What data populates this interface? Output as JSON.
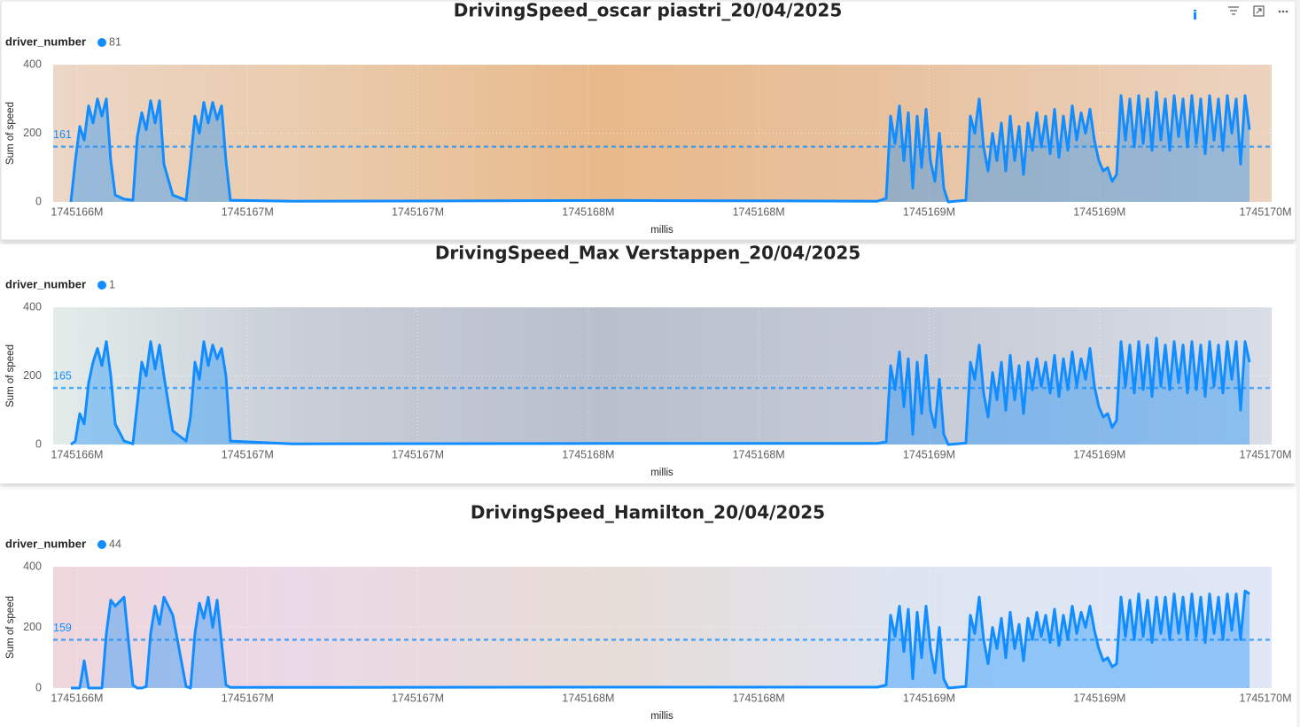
{
  "chart_data": [
    {
      "type": "area",
      "title": "DrivingSpeed_oscar piastri_20/04/2025",
      "legend_title": "driver_number",
      "x_label": "millis",
      "y_label": "Sum of speed",
      "grid": true,
      "average": 161,
      "xlim": [
        1745165930000,
        1745169505000
      ],
      "ylim": [
        0,
        400
      ],
      "yticks": [
        0,
        200,
        400
      ],
      "xticks": [
        {
          "value": 1745166000000,
          "label": "1745166M"
        },
        {
          "value": 1745166500000,
          "label": "1745167M"
        },
        {
          "value": 1745167000000,
          "label": "1745167M"
        },
        {
          "value": 1745167500000,
          "label": "1745168M"
        },
        {
          "value": 1745168000000,
          "label": "1745168M"
        },
        {
          "value": 1745168500000,
          "label": "1745169M"
        },
        {
          "value": 1745169000000,
          "label": "1745169M"
        },
        {
          "value": 1745169500000,
          "label": "1745170M"
        }
      ],
      "x": [
        1745165982000,
        1745165995000,
        1745166008000,
        1745166021000,
        1745166034000,
        1745166047000,
        1745166060000,
        1745166073000,
        1745166086000,
        1745166099000,
        1745166112000,
        1745166138000,
        1745166164000,
        1745166177000,
        1745166190000,
        1745166203000,
        1745166216000,
        1745166229000,
        1745166242000,
        1745166255000,
        1745166281000,
        1745166320000,
        1745166333000,
        1745166346000,
        1745166359000,
        1745166372000,
        1745166385000,
        1745166398000,
        1745166411000,
        1745166424000,
        1745166437000,
        1745166450000,
        1745166632000,
        1745167594000,
        1745168348000,
        1745168374000,
        1745168387000,
        1745168400000,
        1745168413000,
        1745168426000,
        1745168439000,
        1745168452000,
        1745168465000,
        1745168478000,
        1745168491000,
        1745168504000,
        1745168517000,
        1745168530000,
        1745168543000,
        1745168556000,
        1745168608000,
        1745168621000,
        1745168634000,
        1745168647000,
        1745168660000,
        1745168673000,
        1745168686000,
        1745168699000,
        1745168712000,
        1745168725000,
        1745168738000,
        1745168751000,
        1745168764000,
        1745168777000,
        1745168790000,
        1745168803000,
        1745168816000,
        1745168829000,
        1745168842000,
        1745168855000,
        1745168868000,
        1745168881000,
        1745168894000,
        1745168907000,
        1745168920000,
        1745168933000,
        1745168946000,
        1745168959000,
        1745168972000,
        1745168985000,
        1745168998000,
        1745169011000,
        1745169024000,
        1745169037000,
        1745169050000,
        1745169063000,
        1745169076000,
        1745169089000,
        1745169102000,
        1745169115000,
        1745169128000,
        1745169141000,
        1745169154000,
        1745169167000,
        1745169180000,
        1745169193000,
        1745169206000,
        1745169219000,
        1745169232000,
        1745169245000,
        1745169258000,
        1745169271000,
        1745169284000,
        1745169297000,
        1745169310000,
        1745169323000,
        1745169336000,
        1745169349000,
        1745169362000,
        1745169375000,
        1745169388000,
        1745169401000,
        1745169414000,
        1745169427000,
        1745169440000
      ],
      "series": [
        {
          "name": "81",
          "color": "#118dff",
          "values": [
            0,
            120,
            220,
            180,
            280,
            230,
            300,
            250,
            300,
            120,
            20,
            8,
            5,
            190,
            260,
            210,
            295,
            230,
            295,
            110,
            20,
            5,
            120,
            250,
            200,
            290,
            230,
            290,
            240,
            280,
            120,
            5,
            2,
            4,
            2,
            10,
            250,
            170,
            280,
            120,
            260,
            40,
            250,
            100,
            270,
            120,
            60,
            200,
            40,
            0,
            5,
            250,
            200,
            300,
            160,
            90,
            200,
            120,
            230,
            90,
            250,
            120,
            220,
            80,
            230,
            150,
            260,
            160,
            250,
            140,
            270,
            130,
            250,
            150,
            280,
            180,
            260,
            200,
            270,
            180,
            120,
            90,
            100,
            60,
            80,
            310,
            180,
            300,
            160,
            310,
            170,
            300,
            150,
            320,
            180,
            300,
            150,
            310,
            190,
            300,
            160,
            310,
            170,
            300,
            140,
            310,
            180,
            300,
            150,
            310,
            200,
            300,
            110,
            310,
            210
          ]
        }
      ]
    },
    {
      "type": "area",
      "title": "DrivingSpeed_Max Verstappen_20/04/2025",
      "legend_title": "driver_number",
      "x_label": "millis",
      "y_label": "Sum of speed",
      "grid": true,
      "average": 165,
      "xlim": [
        1745165930000,
        1745169505000
      ],
      "ylim": [
        0,
        400
      ],
      "yticks": [
        0,
        200,
        400
      ],
      "xticks": [
        {
          "value": 1745166000000,
          "label": "1745166M"
        },
        {
          "value": 1745166500000,
          "label": "1745167M"
        },
        {
          "value": 1745167000000,
          "label": "1745167M"
        },
        {
          "value": 1745167500000,
          "label": "1745168M"
        },
        {
          "value": 1745168000000,
          "label": "1745168M"
        },
        {
          "value": 1745168500000,
          "label": "1745169M"
        },
        {
          "value": 1745169000000,
          "label": "1745169M"
        },
        {
          "value": 1745169500000,
          "label": "1745170M"
        }
      ],
      "x": [
        1745165982000,
        1745165995000,
        1745166008000,
        1745166021000,
        1745166034000,
        1745166047000,
        1745166060000,
        1745166073000,
        1745166086000,
        1745166099000,
        1745166112000,
        1745166138000,
        1745166164000,
        1745166177000,
        1745166190000,
        1745166203000,
        1745166216000,
        1745166229000,
        1745166242000,
        1745166255000,
        1745166281000,
        1745166320000,
        1745166333000,
        1745166346000,
        1745166359000,
        1745166372000,
        1745166385000,
        1745166398000,
        1745166411000,
        1745166424000,
        1745166437000,
        1745166450000,
        1745166632000,
        1745167594000,
        1745168348000,
        1745168374000,
        1745168387000,
        1745168400000,
        1745168413000,
        1745168426000,
        1745168439000,
        1745168452000,
        1745168465000,
        1745168478000,
        1745168491000,
        1745168504000,
        1745168517000,
        1745168530000,
        1745168543000,
        1745168556000,
        1745168608000,
        1745168621000,
        1745168634000,
        1745168647000,
        1745168660000,
        1745168673000,
        1745168686000,
        1745168699000,
        1745168712000,
        1745168725000,
        1745168738000,
        1745168751000,
        1745168764000,
        1745168777000,
        1745168790000,
        1745168803000,
        1745168816000,
        1745168829000,
        1745168842000,
        1745168855000,
        1745168868000,
        1745168881000,
        1745168894000,
        1745168907000,
        1745168920000,
        1745168933000,
        1745168946000,
        1745168959000,
        1745168972000,
        1745168985000,
        1745168998000,
        1745169011000,
        1745169024000,
        1745169037000,
        1745169050000,
        1745169063000,
        1745169076000,
        1745169089000,
        1745169102000,
        1745169115000,
        1745169128000,
        1745169141000,
        1745169154000,
        1745169167000,
        1745169180000,
        1745169193000,
        1745169206000,
        1745169219000,
        1745169232000,
        1745169245000,
        1745169258000,
        1745169271000,
        1745169284000,
        1745169297000,
        1745169310000,
        1745169323000,
        1745169336000,
        1745169349000,
        1745169362000,
        1745169375000,
        1745169388000,
        1745169401000,
        1745169414000,
        1745169427000,
        1745169440000
      ],
      "series": [
        {
          "name": "1",
          "color": "#118dff",
          "values": [
            0,
            10,
            90,
            60,
            180,
            240,
            280,
            230,
            300,
            200,
            60,
            10,
            2,
            120,
            240,
            200,
            300,
            220,
            290,
            200,
            40,
            10,
            80,
            240,
            190,
            300,
            230,
            290,
            250,
            280,
            200,
            10,
            2,
            3,
            3,
            8,
            230,
            160,
            270,
            110,
            250,
            30,
            240,
            90,
            260,
            100,
            50,
            190,
            30,
            0,
            4,
            240,
            190,
            290,
            150,
            80,
            210,
            130,
            240,
            100,
            260,
            130,
            230,
            90,
            240,
            160,
            250,
            170,
            240,
            150,
            260,
            140,
            250,
            160,
            270,
            170,
            250,
            190,
            280,
            170,
            110,
            80,
            90,
            50,
            70,
            300,
            170,
            290,
            150,
            300,
            160,
            290,
            140,
            310,
            170,
            290,
            160,
            300,
            180,
            290,
            150,
            300,
            160,
            290,
            140,
            300,
            170,
            290,
            150,
            300,
            190,
            300,
            100,
            300,
            240
          ]
        }
      ]
    },
    {
      "type": "area",
      "title": "DrivingSpeed_Hamilton_20/04/2025",
      "legend_title": "driver_number",
      "x_label": "millis",
      "y_label": "Sum of speed",
      "grid": true,
      "average": 159,
      "xlim": [
        1745165930000,
        1745169505000
      ],
      "ylim": [
        0,
        400
      ],
      "yticks": [
        0,
        200,
        400
      ],
      "xticks": [
        {
          "value": 1745166000000,
          "label": "1745166M"
        },
        {
          "value": 1745166500000,
          "label": "1745167M"
        },
        {
          "value": 1745167000000,
          "label": "1745167M"
        },
        {
          "value": 1745167500000,
          "label": "1745168M"
        },
        {
          "value": 1745168000000,
          "label": "1745168M"
        },
        {
          "value": 1745168500000,
          "label": "1745169M"
        },
        {
          "value": 1745169000000,
          "label": "1745169M"
        },
        {
          "value": 1745169500000,
          "label": "1745170M"
        }
      ],
      "x": [
        1745165982000,
        1745165995000,
        1745166008000,
        1745166021000,
        1745166034000,
        1745166047000,
        1745166060000,
        1745166073000,
        1745166086000,
        1745166099000,
        1745166112000,
        1745166138000,
        1745166164000,
        1745166177000,
        1745166190000,
        1745166203000,
        1745166216000,
        1745166229000,
        1745166242000,
        1745166255000,
        1745166281000,
        1745166320000,
        1745166333000,
        1745166346000,
        1745166359000,
        1745166372000,
        1745166385000,
        1745166398000,
        1745166411000,
        1745166424000,
        1745166437000,
        1745166450000,
        1745166632000,
        1745167594000,
        1745168348000,
        1745168374000,
        1745168387000,
        1745168400000,
        1745168413000,
        1745168426000,
        1745168439000,
        1745168452000,
        1745168465000,
        1745168478000,
        1745168491000,
        1745168504000,
        1745168517000,
        1745168530000,
        1745168543000,
        1745168556000,
        1745168608000,
        1745168621000,
        1745168634000,
        1745168647000,
        1745168660000,
        1745168673000,
        1745168686000,
        1745168699000,
        1745168712000,
        1745168725000,
        1745168738000,
        1745168751000,
        1745168764000,
        1745168777000,
        1745168790000,
        1745168803000,
        1745168816000,
        1745168829000,
        1745168842000,
        1745168855000,
        1745168868000,
        1745168881000,
        1745168894000,
        1745168907000,
        1745168920000,
        1745168933000,
        1745168946000,
        1745168959000,
        1745168972000,
        1745168985000,
        1745168998000,
        1745169011000,
        1745169024000,
        1745169037000,
        1745169050000,
        1745169063000,
        1745169076000,
        1745169089000,
        1745169102000,
        1745169115000,
        1745169128000,
        1745169141000,
        1745169154000,
        1745169167000,
        1745169180000,
        1745169193000,
        1745169206000,
        1745169219000,
        1745169232000,
        1745169245000,
        1745169258000,
        1745169271000,
        1745169284000,
        1745169297000,
        1745169310000,
        1745169323000,
        1745169336000,
        1745169349000,
        1745169362000,
        1745169375000,
        1745169388000,
        1745169401000,
        1745169414000,
        1745169427000,
        1745169440000
      ],
      "series": [
        {
          "name": "44",
          "color": "#118dff",
          "values": [
            0,
            0,
            0,
            90,
            0,
            0,
            0,
            0,
            180,
            290,
            270,
            300,
            10,
            0,
            0,
            5,
            180,
            270,
            210,
            300,
            240,
            5,
            0,
            180,
            280,
            230,
            300,
            200,
            290,
            150,
            10,
            2,
            2,
            3,
            3,
            10,
            240,
            170,
            270,
            120,
            260,
            30,
            250,
            100,
            270,
            130,
            50,
            200,
            30,
            0,
            5,
            240,
            180,
            300,
            160,
            80,
            200,
            130,
            230,
            100,
            250,
            130,
            210,
            90,
            230,
            160,
            250,
            170,
            240,
            150,
            260,
            140,
            240,
            160,
            270,
            180,
            250,
            200,
            270,
            190,
            130,
            90,
            100,
            70,
            80,
            300,
            170,
            290,
            160,
            310,
            170,
            290,
            150,
            300,
            180,
            300,
            160,
            310,
            180,
            300,
            160,
            310,
            170,
            300,
            150,
            310,
            180,
            300,
            160,
            310,
            190,
            310,
            160,
            320,
            310
          ]
        }
      ]
    }
  ]
}
